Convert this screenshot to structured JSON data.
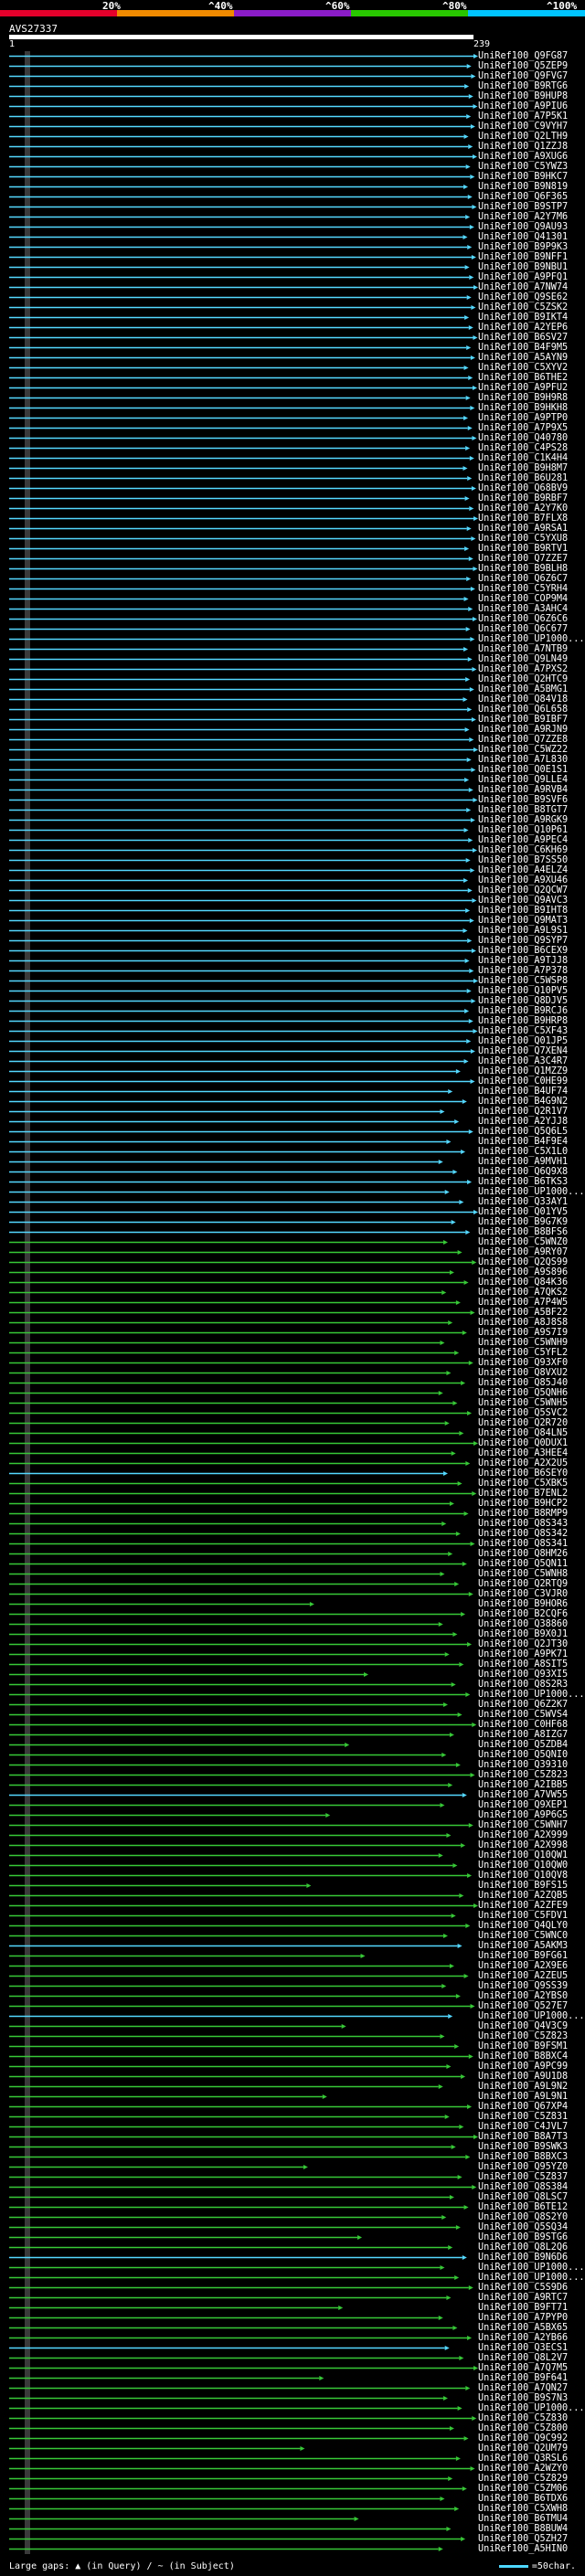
{
  "scale": {
    "labels": [
      "20%",
      "^40%",
      "^60%",
      "^80%",
      "^100%"
    ],
    "colors": [
      "#e4002b",
      "#f08a00",
      "#8b1cc8",
      "#28c700",
      "#00c4ff"
    ]
  },
  "query": {
    "id": "AVS27337",
    "start": "1",
    "end": "239"
  },
  "legend": {
    "gap_text": "Large gaps: ▲ (in Query) / ~ (in Subject)",
    "scale_text": "=50char."
  },
  "colors": {
    "cyan": "#54d8ff",
    "green": "#37c837",
    "gray": "#3a3a3a"
  },
  "hits": [
    {
      "label": "UniRef100_Q9FG87",
      "c": "cyan"
    },
    {
      "label": "UniRef100_Q5ZEP9",
      "c": "cyan"
    },
    {
      "label": "UniRef100_Q9FVG7",
      "c": "cyan"
    },
    {
      "label": "UniRef100_B9RTG6",
      "c": "cyan"
    },
    {
      "label": "UniRef100_B9HUP8",
      "c": "cyan"
    },
    {
      "label": "UniRef100_A9PIU6",
      "c": "cyan"
    },
    {
      "label": "UniRef100_A7P5K1",
      "c": "cyan"
    },
    {
      "label": "UniRef100_C9VYH7",
      "c": "cyan"
    },
    {
      "label": "UniRef100_Q2LTH9",
      "c": "cyan"
    },
    {
      "label": "UniRef100_Q1ZZJ8",
      "c": "cyan"
    },
    {
      "label": "UniRef100_A9XUG6",
      "c": "cyan"
    },
    {
      "label": "UniRef100_C5YWZ3",
      "c": "cyan"
    },
    {
      "label": "UniRef100_B9HKC7",
      "c": "cyan"
    },
    {
      "label": "UniRef100_B9N819",
      "c": "cyan"
    },
    {
      "label": "UniRef100_Q6F365",
      "c": "cyan"
    },
    {
      "label": "UniRef100_B9STP7",
      "c": "cyan"
    },
    {
      "label": "UniRef100_A2Y7M6",
      "c": "cyan"
    },
    {
      "label": "UniRef100_Q9AU93",
      "c": "cyan"
    },
    {
      "label": "UniRef100_Q41301",
      "c": "cyan"
    },
    {
      "label": "UniRef100_B9P9K3",
      "c": "cyan"
    },
    {
      "label": "UniRef100_B9NFF1",
      "c": "cyan"
    },
    {
      "label": "UniRef100_B9NBU1",
      "c": "cyan"
    },
    {
      "label": "UniRef100_A9PFQ1",
      "c": "cyan"
    },
    {
      "label": "UniRef100_A7NW74",
      "c": "cyan"
    },
    {
      "label": "UniRef100_Q9SE62",
      "c": "cyan"
    },
    {
      "label": "UniRef100_C5ZSK2",
      "c": "cyan"
    },
    {
      "label": "UniRef100_B9IKT4",
      "c": "cyan"
    },
    {
      "label": "UniRef100_A2YEP6",
      "c": "cyan"
    },
    {
      "label": "UniRef100_B6SV27",
      "c": "cyan"
    },
    {
      "label": "UniRef100_B4F9M5",
      "c": "cyan"
    },
    {
      "label": "UniRef100_A5AYN9",
      "c": "cyan"
    },
    {
      "label": "UniRef100_C5XYV2",
      "c": "cyan"
    },
    {
      "label": "UniRef100_B6THE2",
      "c": "cyan"
    },
    {
      "label": "UniRef100_A9PFU2",
      "c": "cyan"
    },
    {
      "label": "UniRef100_B9H9R8",
      "c": "cyan"
    },
    {
      "label": "UniRef100_B9HKH8",
      "c": "cyan"
    },
    {
      "label": "UniRef100_A9PTP0",
      "c": "cyan"
    },
    {
      "label": "UniRef100_A7P9X5",
      "c": "cyan"
    },
    {
      "label": "UniRef100_Q40780",
      "c": "cyan"
    },
    {
      "label": "UniRef100_C4PS28",
      "c": "cyan"
    },
    {
      "label": "UniRef100_C1K4H4",
      "c": "cyan"
    },
    {
      "label": "UniRef100_B9H8M7",
      "c": "cyan"
    },
    {
      "label": "UniRef100_B6U281",
      "c": "cyan"
    },
    {
      "label": "UniRef100_Q68BV9",
      "c": "cyan"
    },
    {
      "label": "UniRef100_B9RBF7",
      "c": "cyan"
    },
    {
      "label": "UniRef100_A2Y7K0",
      "c": "cyan"
    },
    {
      "label": "UniRef100_B7FLX8",
      "c": "cyan"
    },
    {
      "label": "UniRef100_A9RSA1",
      "c": "cyan"
    },
    {
      "label": "UniRef100_C5YXU8",
      "c": "cyan"
    },
    {
      "label": "UniRef100_B9RTV1",
      "c": "cyan"
    },
    {
      "label": "UniRef100_Q7ZZE7",
      "c": "cyan"
    },
    {
      "label": "UniRef100_B9BLH8",
      "c": "cyan"
    },
    {
      "label": "UniRef100_Q6Z6C7",
      "c": "cyan"
    },
    {
      "label": "UniRef100_C5YRH4",
      "c": "cyan"
    },
    {
      "label": "UniRef100_COP9M4",
      "c": "cyan"
    },
    {
      "label": "UniRef100_A3AHC4",
      "c": "cyan"
    },
    {
      "label": "UniRef100_Q6Z6C6",
      "c": "cyan"
    },
    {
      "label": "UniRef100_Q6C677",
      "c": "cyan"
    },
    {
      "label": "UniRef100_UP1000...",
      "c": "cyan"
    },
    {
      "label": "UniRef100_A7NTB9",
      "c": "cyan"
    },
    {
      "label": "UniRef100_Q9LN49",
      "c": "cyan"
    },
    {
      "label": "UniRef100_A7PXS2",
      "c": "cyan"
    },
    {
      "label": "UniRef100_Q2HTC9",
      "c": "cyan"
    },
    {
      "label": "UniRef100_A5BMG1",
      "c": "cyan"
    },
    {
      "label": "UniRef100_Q84V18",
      "c": "cyan"
    },
    {
      "label": "UniRef100_Q6L658",
      "c": "cyan"
    },
    {
      "label": "UniRef100_B9IBF7",
      "c": "cyan"
    },
    {
      "label": "UniRef100_A9RJN9",
      "c": "cyan"
    },
    {
      "label": "UniRef100_Q7ZZE8",
      "c": "cyan"
    },
    {
      "label": "UniRef100_C5WZ22",
      "c": "cyan"
    },
    {
      "label": "UniRef100_A7L830",
      "c": "cyan"
    },
    {
      "label": "UniRef100_Q0E1S1",
      "c": "cyan"
    },
    {
      "label": "UniRef100_Q9LLE4",
      "c": "cyan"
    },
    {
      "label": "UniRef100_A9RVB4",
      "c": "cyan"
    },
    {
      "label": "UniRef100_B9SVF6",
      "c": "cyan"
    },
    {
      "label": "UniRef100_B8TGT7",
      "c": "cyan"
    },
    {
      "label": "UniRef100_A9RGK9",
      "c": "cyan"
    },
    {
      "label": "UniRef100_Q10P61",
      "c": "cyan"
    },
    {
      "label": "UniRef100_A9PEC4",
      "c": "cyan"
    },
    {
      "label": "UniRef100_C6KH69",
      "c": "cyan"
    },
    {
      "label": "UniRef100_B7SS50",
      "c": "cyan"
    },
    {
      "label": "UniRef100_A4ELZ4",
      "c": "cyan"
    },
    {
      "label": "UniRef100_A9XU46",
      "c": "cyan"
    },
    {
      "label": "UniRef100_Q2QCW7",
      "c": "cyan"
    },
    {
      "label": "UniRef100_Q9AVC3",
      "c": "cyan"
    },
    {
      "label": "UniRef100_B9IHT8",
      "c": "cyan"
    },
    {
      "label": "UniRef100_Q9MAT3",
      "c": "cyan"
    },
    {
      "label": "UniRef100_A9L9S1",
      "c": "cyan"
    },
    {
      "label": "UniRef100_Q9SYP7",
      "c": "cyan"
    },
    {
      "label": "UniRef100_B6CEX9",
      "c": "cyan"
    },
    {
      "label": "UniRef100_A9TJJ8",
      "c": "cyan"
    },
    {
      "label": "UniRef100_A7P378",
      "c": "cyan"
    },
    {
      "label": "UniRef100_C5WSP8",
      "c": "cyan"
    },
    {
      "label": "UniRef100_Q10PV5",
      "c": "cyan"
    },
    {
      "label": "UniRef100_Q8DJV5",
      "c": "cyan"
    },
    {
      "label": "UniRef100_B9RCJ6",
      "c": "cyan"
    },
    {
      "label": "UniRef100_B9HRP8",
      "c": "cyan"
    },
    {
      "label": "UniRef100_C5XF43",
      "c": "cyan"
    },
    {
      "label": "UniRef100_Q01JP5",
      "c": "cyan"
    },
    {
      "label": "UniRef100_Q7XEN4",
      "c": "cyan"
    },
    {
      "label": "UniRef100_A3C4R7",
      "c": "cyan"
    },
    {
      "label": "UniRef100_Q1MZZ9",
      "c": "cyan"
    },
    {
      "label": "UniRef100_C0HE99",
      "c": "cyan"
    },
    {
      "label": "UniRef100_B4UF74",
      "c": "cyan"
    },
    {
      "label": "UniRef100_B4G9N2",
      "c": "cyan"
    },
    {
      "label": "UniRef100_Q2R1V7",
      "c": "cyan"
    },
    {
      "label": "UniRef100_A2YJJ8",
      "c": "cyan"
    },
    {
      "label": "UniRef100_Q5Q6L5",
      "c": "cyan"
    },
    {
      "label": "UniRef100_B4F9E4",
      "c": "cyan"
    },
    {
      "label": "UniRef100_C5X1L0",
      "c": "cyan"
    },
    {
      "label": "UniRef100_A9MVH1",
      "c": "cyan"
    },
    {
      "label": "UniRef100_Q6Q9X8",
      "c": "cyan"
    },
    {
      "label": "UniRef100_B6TKS3",
      "c": "cyan"
    },
    {
      "label": "UniRef100_UP1000...",
      "c": "cyan"
    },
    {
      "label": "UniRef100_Q33AY1",
      "c": "cyan"
    },
    {
      "label": "UniRef100_Q01YV5",
      "c": "cyan"
    },
    {
      "label": "UniRef100_B9G7K9",
      "c": "cyan"
    },
    {
      "label": "UniRef100_B8BFS6",
      "c": "cyan"
    },
    {
      "label": "UniRef100_C5WNZ0",
      "c": "green"
    },
    {
      "label": "UniRef100_A9RY07",
      "c": "green"
    },
    {
      "label": "UniRef100_Q2QS99",
      "c": "green"
    },
    {
      "label": "UniRef100_A9S896",
      "c": "green"
    },
    {
      "label": "UniRef100_Q84K36",
      "c": "green"
    },
    {
      "label": "UniRef100_A7QKS2",
      "c": "green"
    },
    {
      "label": "UniRef100_A7P4W5",
      "c": "green"
    },
    {
      "label": "UniRef100_A5BF22",
      "c": "green"
    },
    {
      "label": "UniRef100_A8J8S8",
      "c": "green"
    },
    {
      "label": "UniRef100_A9S7I9",
      "c": "green"
    },
    {
      "label": "UniRef100_C5WNH9",
      "c": "green"
    },
    {
      "label": "UniRef100_C5YFL2",
      "c": "green"
    },
    {
      "label": "UniRef100_Q93XF0",
      "c": "green"
    },
    {
      "label": "UniRef100_Q8VXU2",
      "c": "green"
    },
    {
      "label": "UniRef100_Q85J40",
      "c": "green"
    },
    {
      "label": "UniRef100_Q5QNH6",
      "c": "green"
    },
    {
      "label": "UniRef100_C5WNH5",
      "c": "green"
    },
    {
      "label": "UniRef100_Q5SVC2",
      "c": "green"
    },
    {
      "label": "UniRef100_Q2R720",
      "c": "green"
    },
    {
      "label": "UniRef100_Q84LN5",
      "c": "green"
    },
    {
      "label": "UniRef100_Q0DUX1",
      "c": "green"
    },
    {
      "label": "UniRef100_A3HEE4",
      "c": "green"
    },
    {
      "label": "UniRef100_A2X2U5",
      "c": "green"
    },
    {
      "label": "UniRef100_B6SEY0",
      "c": "cyan"
    },
    {
      "label": "UniRef100_C5XBK5",
      "c": "green"
    },
    {
      "label": "UniRef100_B7ENL2",
      "c": "green"
    },
    {
      "label": "UniRef100_B9HCP2",
      "c": "green"
    },
    {
      "label": "UniRef100_B8RMP9",
      "c": "green"
    },
    {
      "label": "UniRef100_Q8S343",
      "c": "green"
    },
    {
      "label": "UniRef100_Q8S342",
      "c": "green"
    },
    {
      "label": "UniRef100_Q8S341",
      "c": "green"
    },
    {
      "label": "UniRef100_Q8HM26",
      "c": "green"
    },
    {
      "label": "UniRef100_Q5QN11",
      "c": "green"
    },
    {
      "label": "UniRef100_C5WNH8",
      "c": "green"
    },
    {
      "label": "UniRef100_Q2RTQ9",
      "c": "green"
    },
    {
      "label": "UniRef100_C3VJR0",
      "c": "green"
    },
    {
      "label": "UniRef100_B9HOR6",
      "c": "green"
    },
    {
      "label": "UniRef100_B2CQF6",
      "c": "green"
    },
    {
      "label": "UniRef100_Q38860",
      "c": "green"
    },
    {
      "label": "UniRef100_B9X0J1",
      "c": "green"
    },
    {
      "label": "UniRef100_Q2JT30",
      "c": "green"
    },
    {
      "label": "UniRef100_A9PK71",
      "c": "green"
    },
    {
      "label": "UniRef100_A8SIT5",
      "c": "green"
    },
    {
      "label": "UniRef100_Q93XI5",
      "c": "green"
    },
    {
      "label": "UniRef100_Q8S2R3",
      "c": "green"
    },
    {
      "label": "UniRef100_UP1000...",
      "c": "green"
    },
    {
      "label": "UniRef100_Q6Z2K7",
      "c": "green"
    },
    {
      "label": "UniRef100_C5WVS4",
      "c": "green"
    },
    {
      "label": "UniRef100_C0HF68",
      "c": "green"
    },
    {
      "label": "UniRef100_A8IZG7",
      "c": "green"
    },
    {
      "label": "UniRef100_Q5ZDB4",
      "c": "green"
    },
    {
      "label": "UniRef100_Q5QNI0",
      "c": "green"
    },
    {
      "label": "UniRef100_Q39310",
      "c": "green"
    },
    {
      "label": "UniRef100_C5Z823",
      "c": "green"
    },
    {
      "label": "UniRef100_A2IBB5",
      "c": "green"
    },
    {
      "label": "UniRef100_A7VW55",
      "c": "cyan"
    },
    {
      "label": "UniRef100_Q9XEP1",
      "c": "green"
    },
    {
      "label": "UniRef100_A9P6G5",
      "c": "green"
    },
    {
      "label": "UniRef100_C5WNH7",
      "c": "green"
    },
    {
      "label": "UniRef100_A2X999",
      "c": "green"
    },
    {
      "label": "UniRef100_A2X998",
      "c": "green"
    },
    {
      "label": "UniRef100_Q10QW1",
      "c": "green"
    },
    {
      "label": "UniRef100_Q10QW0",
      "c": "green"
    },
    {
      "label": "UniRef100_Q10QV8",
      "c": "green"
    },
    {
      "label": "UniRef100_B9FS15",
      "c": "green"
    },
    {
      "label": "UniRef100_A2ZQB5",
      "c": "green"
    },
    {
      "label": "UniRef100_A2ZFE9",
      "c": "green"
    },
    {
      "label": "UniRef100_C5FDV1",
      "c": "green"
    },
    {
      "label": "UniRef100_Q4QLY0",
      "c": "green"
    },
    {
      "label": "UniRef100_C5WNC0",
      "c": "green"
    },
    {
      "label": "UniRef100_A5AKM3",
      "c": "cyan"
    },
    {
      "label": "UniRef100_B9FG61",
      "c": "green"
    },
    {
      "label": "UniRef100_A2X9E6",
      "c": "green"
    },
    {
      "label": "UniRef100_A2ZEU5",
      "c": "green"
    },
    {
      "label": "UniRef100_Q9SS39",
      "c": "green"
    },
    {
      "label": "UniRef100_A2YBS0",
      "c": "green"
    },
    {
      "label": "UniRef100_Q527E7",
      "c": "green"
    },
    {
      "label": "UniRef100_UP1000...",
      "c": "cyan"
    },
    {
      "label": "UniRef100_Q4V3C9",
      "c": "green"
    },
    {
      "label": "UniRef100_C5Z823",
      "c": "green"
    },
    {
      "label": "UniRef100_B9FSM1",
      "c": "green"
    },
    {
      "label": "UniRef100_B8BXC4",
      "c": "green"
    },
    {
      "label": "UniRef100_A9PC99",
      "c": "green"
    },
    {
      "label": "UniRef100_A9U1D8",
      "c": "green"
    },
    {
      "label": "UniRef100_A9L9N2",
      "c": "green"
    },
    {
      "label": "UniRef100_A9L9N1",
      "c": "green"
    },
    {
      "label": "UniRef100_Q67XP4",
      "c": "green"
    },
    {
      "label": "UniRef100_C5Z831",
      "c": "green"
    },
    {
      "label": "UniRef100_C4JVL7",
      "c": "green"
    },
    {
      "label": "UniRef100_B8A7T3",
      "c": "green"
    },
    {
      "label": "UniRef100_B9SWK3",
      "c": "green"
    },
    {
      "label": "UniRef100_B8BXC3",
      "c": "green"
    },
    {
      "label": "UniRef100_Q95YZ0",
      "c": "green"
    },
    {
      "label": "UniRef100_C5Z837",
      "c": "green"
    },
    {
      "label": "UniRef100_Q8S384",
      "c": "green"
    },
    {
      "label": "UniRef100_Q8LSC7",
      "c": "green"
    },
    {
      "label": "UniRef100_B6TE12",
      "c": "green"
    },
    {
      "label": "UniRef100_Q8S2Y0",
      "c": "green"
    },
    {
      "label": "UniRef100_Q5SQ34",
      "c": "green"
    },
    {
      "label": "UniRef100_B9STG6",
      "c": "green"
    },
    {
      "label": "UniRef100_Q8L2Q6",
      "c": "green"
    },
    {
      "label": "UniRef100_B9N6D6",
      "c": "cyan"
    },
    {
      "label": "UniRef100_UP1000...",
      "c": "green"
    },
    {
      "label": "UniRef100_UP1000...",
      "c": "green"
    },
    {
      "label": "UniRef100_C5S9D6",
      "c": "green"
    },
    {
      "label": "UniRef100_A9RTC7",
      "c": "green"
    },
    {
      "label": "UniRef100_B9FT71",
      "c": "green"
    },
    {
      "label": "UniRef100_A7PYP0",
      "c": "green"
    },
    {
      "label": "UniRef100_A5BX65",
      "c": "green"
    },
    {
      "label": "UniRef100_A2YB66",
      "c": "green"
    },
    {
      "label": "UniRef100_Q3ECS1",
      "c": "cyan"
    },
    {
      "label": "UniRef100_Q8L2V7",
      "c": "green"
    },
    {
      "label": "UniRef100_A7Q7M5",
      "c": "green"
    },
    {
      "label": "UniRef100_B9F641",
      "c": "green"
    },
    {
      "label": "UniRef100_A7QN27",
      "c": "green"
    },
    {
      "label": "UniRef100_B9S7N3",
      "c": "green"
    },
    {
      "label": "UniRef100_UP1000...",
      "c": "green"
    },
    {
      "label": "UniRef100_C5Z830",
      "c": "green"
    },
    {
      "label": "UniRef100_C5Z800",
      "c": "green"
    },
    {
      "label": "UniRef100_Q9C992",
      "c": "green"
    },
    {
      "label": "UniRef100_Q2UM79",
      "c": "green"
    },
    {
      "label": "UniRef100_Q3RSL6",
      "c": "green"
    },
    {
      "label": "UniRef100_A2WZY0",
      "c": "green"
    },
    {
      "label": "UniRef100_C5Z829",
      "c": "green"
    },
    {
      "label": "UniRef100_C5ZM06",
      "c": "green"
    },
    {
      "label": "UniRef100_B6TDX6",
      "c": "green"
    },
    {
      "label": "UniRef100_C5XWH8",
      "c": "green"
    },
    {
      "label": "UniRef100_B6TMU4",
      "c": "green"
    },
    {
      "label": "UniRef100_B8BUW4",
      "c": "green"
    },
    {
      "label": "UniRef100_Q5ZH27",
      "c": "green"
    },
    {
      "label": "UniRef100_A5HIN0",
      "c": "green"
    }
  ]
}
